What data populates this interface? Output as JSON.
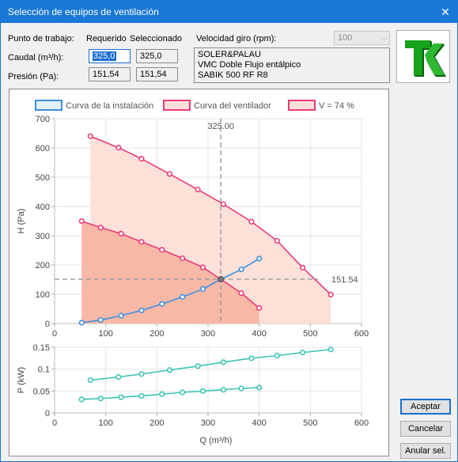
{
  "window": {
    "title": "Selección de equipos de ventilación",
    "close_glyph": "✕"
  },
  "form": {
    "work_point_label": "Punto de trabajo:",
    "required_header": "Requerido",
    "selected_header": "Seleccionado",
    "flow_label": "Caudal (m³/h):",
    "pressure_label": "Presión (Pa):",
    "flow_required": "325,0",
    "flow_selected": "325,0",
    "pressure_required": "151,54",
    "pressure_selected": "151,54",
    "speed_label": "Velocidad giro (rpm):",
    "speed_value": "100",
    "info_line1": "SOLER&PALAU",
    "info_line2": "VMC Doble Flujo entálpico",
    "info_line3": "SABIK 500 RF R8"
  },
  "buttons": {
    "accept": "Aceptar",
    "cancel": "Cancelar",
    "cancel_sel": "Anular sel."
  },
  "icons": {
    "logo": "tk-logo-icon",
    "close": "close-icon",
    "dropdown": "chevron-down-icon"
  },
  "colors": {
    "installation": "#3d8fe0",
    "fan": "#e83a78",
    "fan_fill": "#fde0d8",
    "fan_fill_dark": "#f8b8a6",
    "power": "#3cc4b4",
    "titlebar": "#1a78d7"
  },
  "chart_data": [
    {
      "type": "line",
      "xlabel": "",
      "ylabel": "H (Pa)",
      "xlim": [
        0,
        600
      ],
      "ylim": [
        0,
        700
      ],
      "x_ticks": [
        0,
        100,
        200,
        300,
        400,
        500,
        600
      ],
      "y_ticks": [
        0,
        100,
        200,
        300,
        400,
        500,
        600,
        700
      ],
      "grid": true,
      "legend_position": "top",
      "legend": [
        "Curva de la instalación",
        "Curva del ventilador",
        "V = 74 %"
      ],
      "crosshair": {
        "x": 325.0,
        "y": 151.54,
        "x_label": "325.00",
        "y_label": "151.54"
      },
      "series": [
        {
          "name": "Curva de la instalación",
          "x": [
            53,
            90,
            130,
            170,
            210,
            250,
            290,
            325,
            365,
            400
          ],
          "y": [
            3,
            12,
            27,
            45,
            67,
            91,
            118,
            151,
            185,
            222
          ]
        },
        {
          "name": "Curva del ventilador",
          "x": [
            53,
            90,
            130,
            170,
            210,
            250,
            290,
            325,
            365,
            400
          ],
          "y": [
            350,
            328,
            307,
            279,
            252,
            223,
            192,
            151,
            104,
            53
          ]
        },
        {
          "name": "V = 74 %",
          "x": [
            70,
            125,
            170,
            225,
            280,
            330,
            385,
            435,
            485,
            540
          ],
          "y": [
            640,
            601,
            563,
            511,
            458,
            408,
            348,
            283,
            191,
            99
          ]
        }
      ]
    },
    {
      "type": "line",
      "xlabel": "Q (m³/h)",
      "ylabel": "P (kW)",
      "xlim": [
        0,
        600
      ],
      "ylim": [
        0,
        0.15
      ],
      "x_ticks": [
        0,
        100,
        200,
        300,
        400,
        500,
        600
      ],
      "y_ticks": [
        0,
        0.05,
        0.1,
        0.15
      ],
      "grid": true,
      "series": [
        {
          "name": "Curva del ventilador",
          "x": [
            53,
            90,
            130,
            170,
            210,
            250,
            290,
            330,
            365,
            400
          ],
          "y": [
            0.031,
            0.033,
            0.036,
            0.039,
            0.043,
            0.047,
            0.05,
            0.053,
            0.056,
            0.058
          ]
        },
        {
          "name": "V = 74 %",
          "x": [
            70,
            125,
            170,
            225,
            280,
            330,
            385,
            435,
            485,
            540
          ],
          "y": [
            0.075,
            0.082,
            0.089,
            0.098,
            0.107,
            0.116,
            0.125,
            0.131,
            0.138,
            0.145
          ]
        }
      ]
    }
  ]
}
